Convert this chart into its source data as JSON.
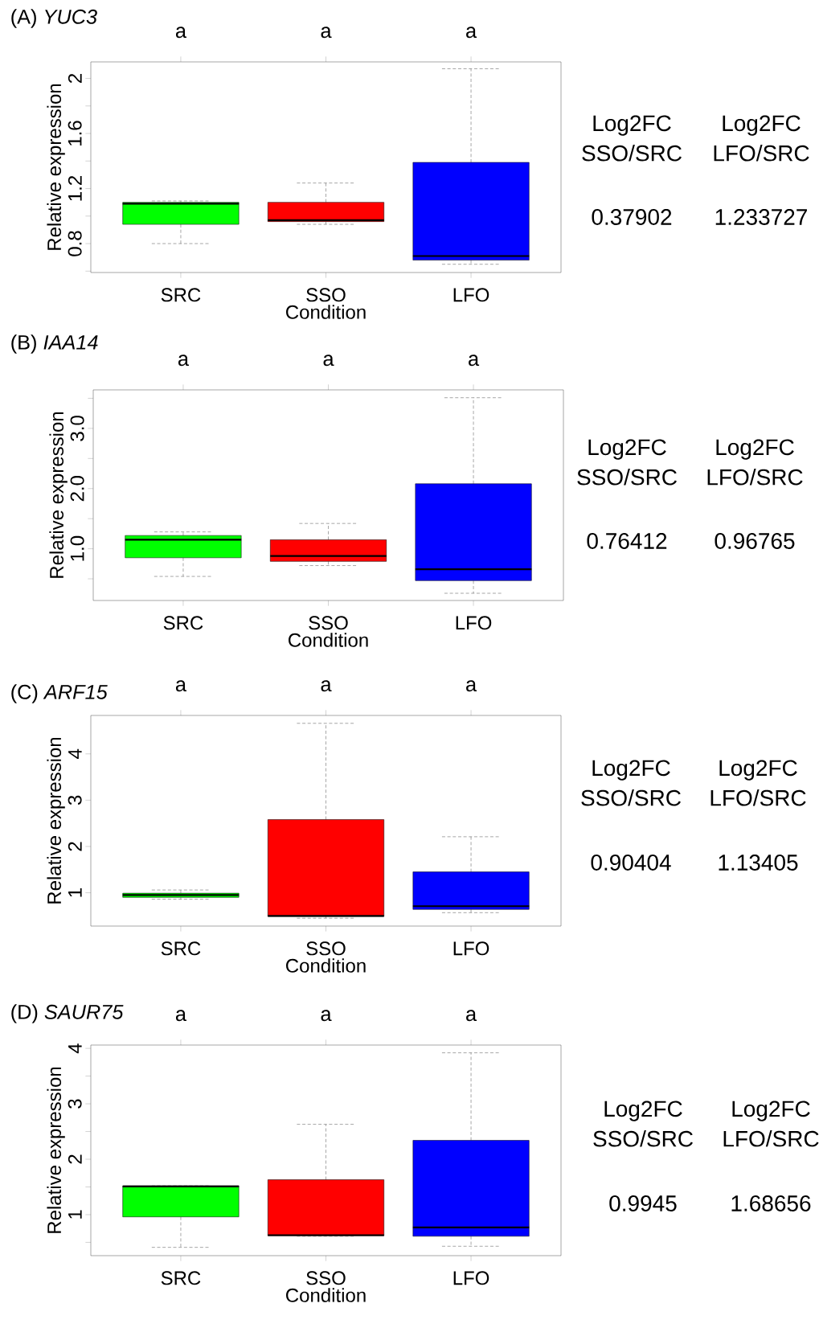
{
  "chart_data": [
    {
      "type": "box",
      "title": "(A) *YUC3*",
      "xlabel": "Condition",
      "ylabel": "Relative expression",
      "categories": [
        "SRC",
        "SSO",
        "LFO"
      ],
      "colors": [
        "#00ff00",
        "#ff0000",
        "#0000ff"
      ],
      "ylim": [
        0.59,
        2.12
      ],
      "yticks": [
        {
          "value": 0.6,
          "label": null
        },
        0.8,
        {
          "value": 1.0,
          "label": null
        },
        1.2,
        {
          "value": 1.4,
          "label": null
        },
        1.6,
        {
          "value": 1.8,
          "label": null
        },
        2
      ],
      "boxes": [
        {
          "low": 0.8,
          "q1": 0.94,
          "median": 1.09,
          "q3": 1.1,
          "high": 1.11
        },
        {
          "low": 0.94,
          "q1": 0.96,
          "median": 0.97,
          "q3": 1.1,
          "high": 1.24
        },
        {
          "low": 0.65,
          "q1": 0.68,
          "median": 0.71,
          "q3": 1.39,
          "high": 2.07
        }
      ],
      "annotations": [
        "a",
        "a",
        "a",
        "Log2FC SSO/SRC",
        "Log2FC LFO/SRC",
        "0.37902",
        "1.233727"
      ]
    },
    {
      "type": "box",
      "title": "(B) *IAA14*",
      "xlabel": "Condition",
      "ylabel": "Relative expression",
      "categories": [
        "SRC",
        "SSO",
        "LFO"
      ],
      "colors": [
        "#00ff00",
        "#ff0000",
        "#0000ff"
      ],
      "ylim": [
        0.14,
        3.64
      ],
      "yticks": [
        {
          "value": 0.5,
          "label": null
        },
        {
          "value": 1,
          "label": "1.0"
        },
        {
          "value": 1.5,
          "label": null
        },
        {
          "value": 2,
          "label": "2.0"
        },
        {
          "value": 2.5,
          "label": null
        },
        {
          "value": 3,
          "label": "3.0"
        },
        {
          "value": 3.5,
          "label": null
        }
      ],
      "boxes": [
        {
          "low": 0.54,
          "q1": 0.85,
          "median": 1.15,
          "q3": 1.22,
          "high": 1.28
        },
        {
          "low": 0.72,
          "q1": 0.79,
          "median": 0.88,
          "q3": 1.15,
          "high": 1.42
        },
        {
          "low": 0.26,
          "q1": 0.47,
          "median": 0.66,
          "q3": 2.08,
          "high": 3.51
        }
      ],
      "annotations": [
        "a",
        "a",
        "a",
        "Log2FC SSO/SRC",
        "Log2FC LFO/SRC",
        "0.76412",
        "0.96765"
      ]
    },
    {
      "type": "box",
      "title": "(C) *ARF15*",
      "xlabel": "Condition",
      "ylabel": "Relative expression",
      "categories": [
        "SRC",
        "SSO",
        "LFO"
      ],
      "colors": [
        "#00ff00",
        "#ff0000",
        "#0000ff"
      ],
      "ylim": [
        0.28,
        4.83
      ],
      "yticks": [
        1,
        2,
        3,
        4
      ],
      "boxes": [
        {
          "low": 0.86,
          "q1": 0.9,
          "median": 0.95,
          "q3": 0.99,
          "high": 1.06
        },
        {
          "low": 0.45,
          "q1": 0.49,
          "median": 0.5,
          "q3": 2.58,
          "high": 4.66
        },
        {
          "low": 0.57,
          "q1": 0.64,
          "median": 0.71,
          "q3": 1.45,
          "high": 2.21
        }
      ],
      "annotations": [
        "a",
        "a",
        "a",
        "Log2FC SSO/SRC",
        "Log2FC LFO/SRC",
        "0.90404",
        "1.13405"
      ]
    },
    {
      "type": "box",
      "title": "(D) *SAUR75*",
      "xlabel": "Condition",
      "ylabel": "Relative expression",
      "categories": [
        "SRC",
        "SSO",
        "LFO"
      ],
      "colors": [
        "#00ff00",
        "#ff0000",
        "#0000ff"
      ],
      "ylim": [
        0.26,
        4.06
      ],
      "yticks": [
        {
          "value": 0.5,
          "label": null
        },
        1,
        {
          "value": 1.5,
          "label": null
        },
        2,
        {
          "value": 2.5,
          "label": null
        },
        3,
        {
          "value": 3.5,
          "label": null
        },
        4
      ],
      "boxes": [
        {
          "low": 0.41,
          "q1": 0.96,
          "median": 1.51,
          "q3": 1.52,
          "high": 1.52
        },
        {
          "low": 0.61,
          "q1": 0.62,
          "median": 0.63,
          "q3": 1.63,
          "high": 2.63
        },
        {
          "low": 0.43,
          "q1": 0.61,
          "median": 0.77,
          "q3": 2.34,
          "high": 3.92
        }
      ],
      "annotations": [
        "a",
        "a",
        "a",
        "Log2FC SSO/SRC",
        "Log2FC LFO/SRC",
        "0.9945",
        "1.68656"
      ]
    }
  ]
}
